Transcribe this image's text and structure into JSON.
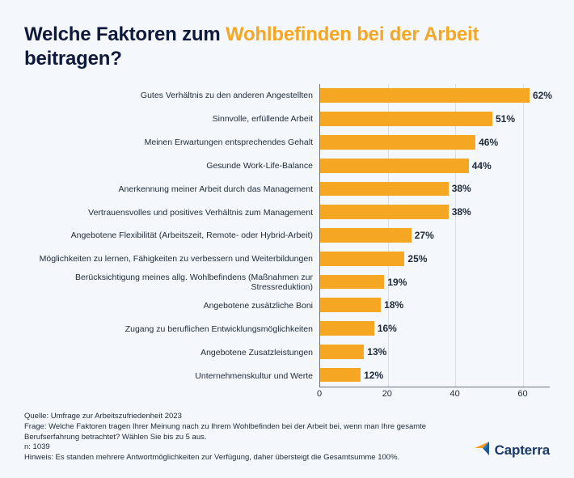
{
  "title": {
    "prefix": "Welche Faktoren zum ",
    "highlight": "Wohlbefinden bei der Arbeit",
    "suffix": " beitragen?",
    "color_main": "#0f1a3a",
    "color_highlight": "#f5a623",
    "fontsize": 24
  },
  "chart": {
    "type": "bar-horizontal",
    "bar_color": "#f5a623",
    "background_color": "#f4f8fc",
    "grid_color": "#d9dde3",
    "axis_color": "#6b7280",
    "value_suffix": "%",
    "value_fontsize": 12,
    "label_fontsize": 10.5,
    "xlim_max": 68,
    "xticks": [
      0,
      20,
      40,
      60
    ],
    "items": [
      {
        "label": "Gutes Verhältnis zu den anderen Angestellten",
        "value": 62
      },
      {
        "label": "Sinnvolle, erfüllende Arbeit",
        "value": 51
      },
      {
        "label": "Meinen Erwartungen entsprechendes Gehalt",
        "value": 46
      },
      {
        "label": "Gesunde Work-Life-Balance",
        "value": 44
      },
      {
        "label": "Anerkennung meiner Arbeit durch das Management",
        "value": 38
      },
      {
        "label": "Vertrauensvolles und positives Verhältnis zum Management",
        "value": 38
      },
      {
        "label": "Angebotene Flexibilität (Arbeitszeit, Remote- oder Hybrid-Arbeit)",
        "value": 27
      },
      {
        "label": "Möglichkeiten zu lernen, Fähigkeiten zu verbessern und Weiterbildungen",
        "value": 25
      },
      {
        "label": "Berücksichtigung meines allg. Wohlbefindens (Maßnahmen zur Stressreduktion)",
        "value": 19
      },
      {
        "label": "Angebotene zusätzliche Boni",
        "value": 18
      },
      {
        "label": "Zugang zu beruflichen Entwicklungsmöglichkeiten",
        "value": 16
      },
      {
        "label": "Angebotene Zusatzleistungen",
        "value": 13
      },
      {
        "label": "Unternehmenskultur und Werte",
        "value": 12
      }
    ]
  },
  "footer": {
    "source": "Quelle: Umfrage zur Arbeitszufriedenheit 2023",
    "question": "Frage: Welche Faktoren tragen Ihrer Meinung nach zu Ihrem Wohlbefinden bei der Arbeit bei, wenn man Ihre gesamte Berufserfahrung betrachtet? Wählen Sie bis zu 5 aus.",
    "n": "n: 1039",
    "note": "Hinweis: Es standen mehrere Antwortmöglichkeiten zur Verfügung, daher übersteigt die Gesamtsumme 100%.",
    "fontsize": 9.5
  },
  "logo": {
    "name": "Capterra",
    "colors": {
      "dark": "#1b5a8f",
      "mid": "#2f7fbf",
      "accent": "#ff9d28"
    }
  }
}
